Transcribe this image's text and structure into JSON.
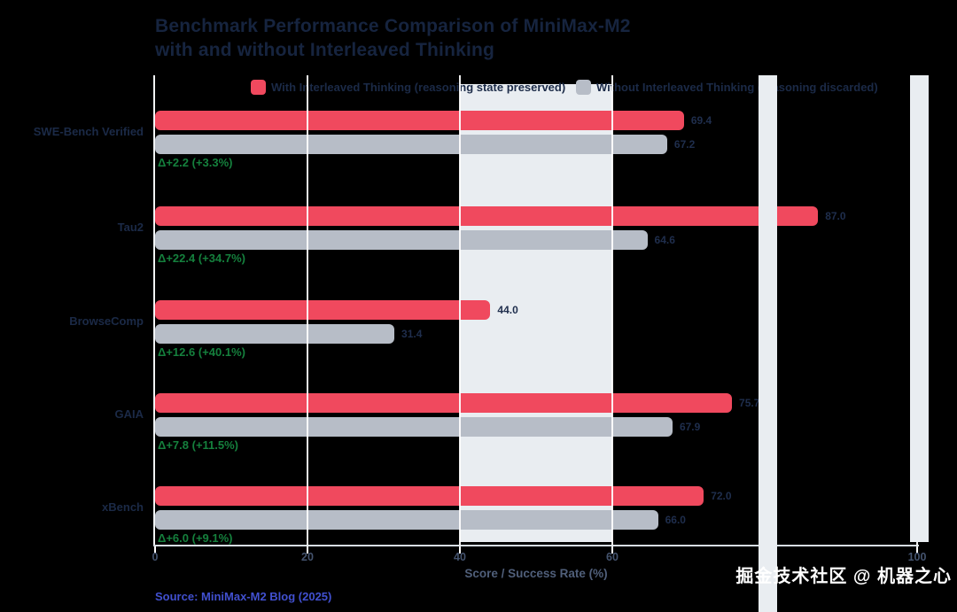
{
  "title": {
    "line1": "Benchmark Performance Comparison of MiniMax-M2",
    "line2": "with and without Interleaved Thinking"
  },
  "chart_data": {
    "type": "bar",
    "orientation": "horizontal",
    "title": "Benchmark Performance Comparison of MiniMax-M2 with and without Interleaved Thinking",
    "categories": [
      "SWE-Bench Verified",
      "Tau2",
      "BrowseComp",
      "GAIA",
      "xBench"
    ],
    "series": [
      {
        "name": "With Interleaved Thinking (reasoning state preserved)",
        "color": "#f0495e",
        "values": [
          69.4,
          87.0,
          44.0,
          75.7,
          72.0
        ]
      },
      {
        "name": "Without Interleaved Thinking (reasoning discarded)",
        "color": "#b7bdc7",
        "values": [
          67.2,
          64.6,
          31.4,
          67.9,
          66.0
        ]
      }
    ],
    "annotations": [
      "Δ+2.2 (+3.3%)",
      "Δ+22.4 (+34.7%)",
      "Δ+12.6 (+40.1%)",
      "Δ+7.8 (+11.5%)",
      "Δ+6.0 (+9.1%)"
    ],
    "annotation_color": "#15803d",
    "xlabel": "Score / Success Rate (%)",
    "xlim": [
      0,
      100
    ],
    "xticks": [
      "0",
      "20",
      "40",
      "60",
      "80",
      "100"
    ],
    "grid": true,
    "legend_position": "top"
  },
  "footer": {
    "source": "Source: MiniMax-M2 Blog (2025)",
    "watermark": "掘金技术社区 @ 机器之心"
  }
}
